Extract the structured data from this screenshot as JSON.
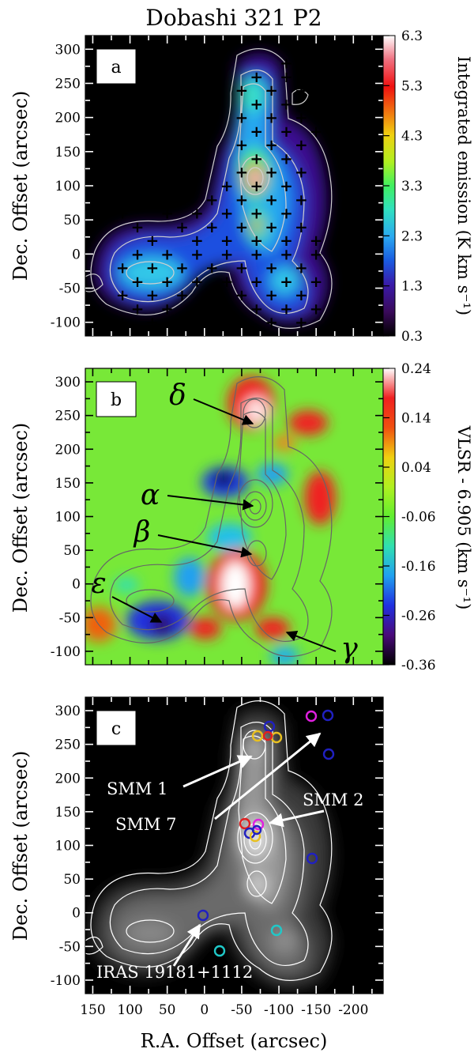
{
  "chart_data": [
    {
      "type": "heatmap",
      "panel": "a",
      "title": "Dobashi 321 P2",
      "ylabel": "Dec. Offset (arcsec)",
      "colorbar_label": "Integrated emission (K km s⁻¹)",
      "colorbar_ticks": [
        "6.3",
        "5.3",
        "4.3",
        "3.3",
        "2.3",
        "1.3",
        "0.3"
      ],
      "clim": [
        0.3,
        6.3
      ],
      "xlim": [
        160,
        -240
      ],
      "ylim": [
        -120,
        320
      ],
      "y_ticks": [
        "300",
        "250",
        "200",
        "150",
        "100",
        "50",
        "0",
        "-50",
        "-100"
      ],
      "sampled_positions_marker": "+"
    },
    {
      "type": "heatmap",
      "panel": "b",
      "ylabel": "Dec. Offset (arcsec)",
      "colorbar_label": "VLSR - 6.905 (km s⁻¹)",
      "colorbar_ticks": [
        "0.24",
        "0.14",
        "0.04",
        "-0.06",
        "-0.16",
        "-0.26",
        "-0.36"
      ],
      "clim": [
        -0.36,
        0.24
      ],
      "xlim": [
        160,
        -240
      ],
      "ylim": [
        -120,
        320
      ],
      "y_ticks": [
        "300",
        "250",
        "200",
        "150",
        "100",
        "50",
        "0",
        "-50",
        "-100"
      ],
      "annotations": [
        {
          "label": "δ",
          "x": -75,
          "y": 235
        },
        {
          "label": "α",
          "x": -75,
          "y": 115
        },
        {
          "label": "β",
          "x": -75,
          "y": 45
        },
        {
          "label": "ε",
          "x": 55,
          "y": -40
        },
        {
          "label": "γ",
          "x": -115,
          "y": -45
        }
      ]
    },
    {
      "type": "heatmap",
      "panel": "c",
      "xlabel": "R.A. Offset (arcsec)",
      "ylabel": "Dec. Offset (arcsec)",
      "xlim": [
        160,
        -240
      ],
      "ylim": [
        -120,
        320
      ],
      "x_ticks": [
        "150",
        "100",
        "50",
        "0",
        "-50",
        "-100",
        "-150",
        "-200"
      ],
      "y_ticks": [
        "300",
        "250",
        "200",
        "150",
        "100",
        "50",
        "0",
        "-50",
        "-100"
      ],
      "sources": [
        {
          "label": "SMM 1",
          "x": -65,
          "y": 235
        },
        {
          "label": "SMM 7",
          "x": -175,
          "y": 295
        },
        {
          "label": "SMM 2",
          "x": -80,
          "y": 125
        },
        {
          "label": "IRAS 19181+1112",
          "x": 0,
          "y": 0
        }
      ]
    }
  ]
}
